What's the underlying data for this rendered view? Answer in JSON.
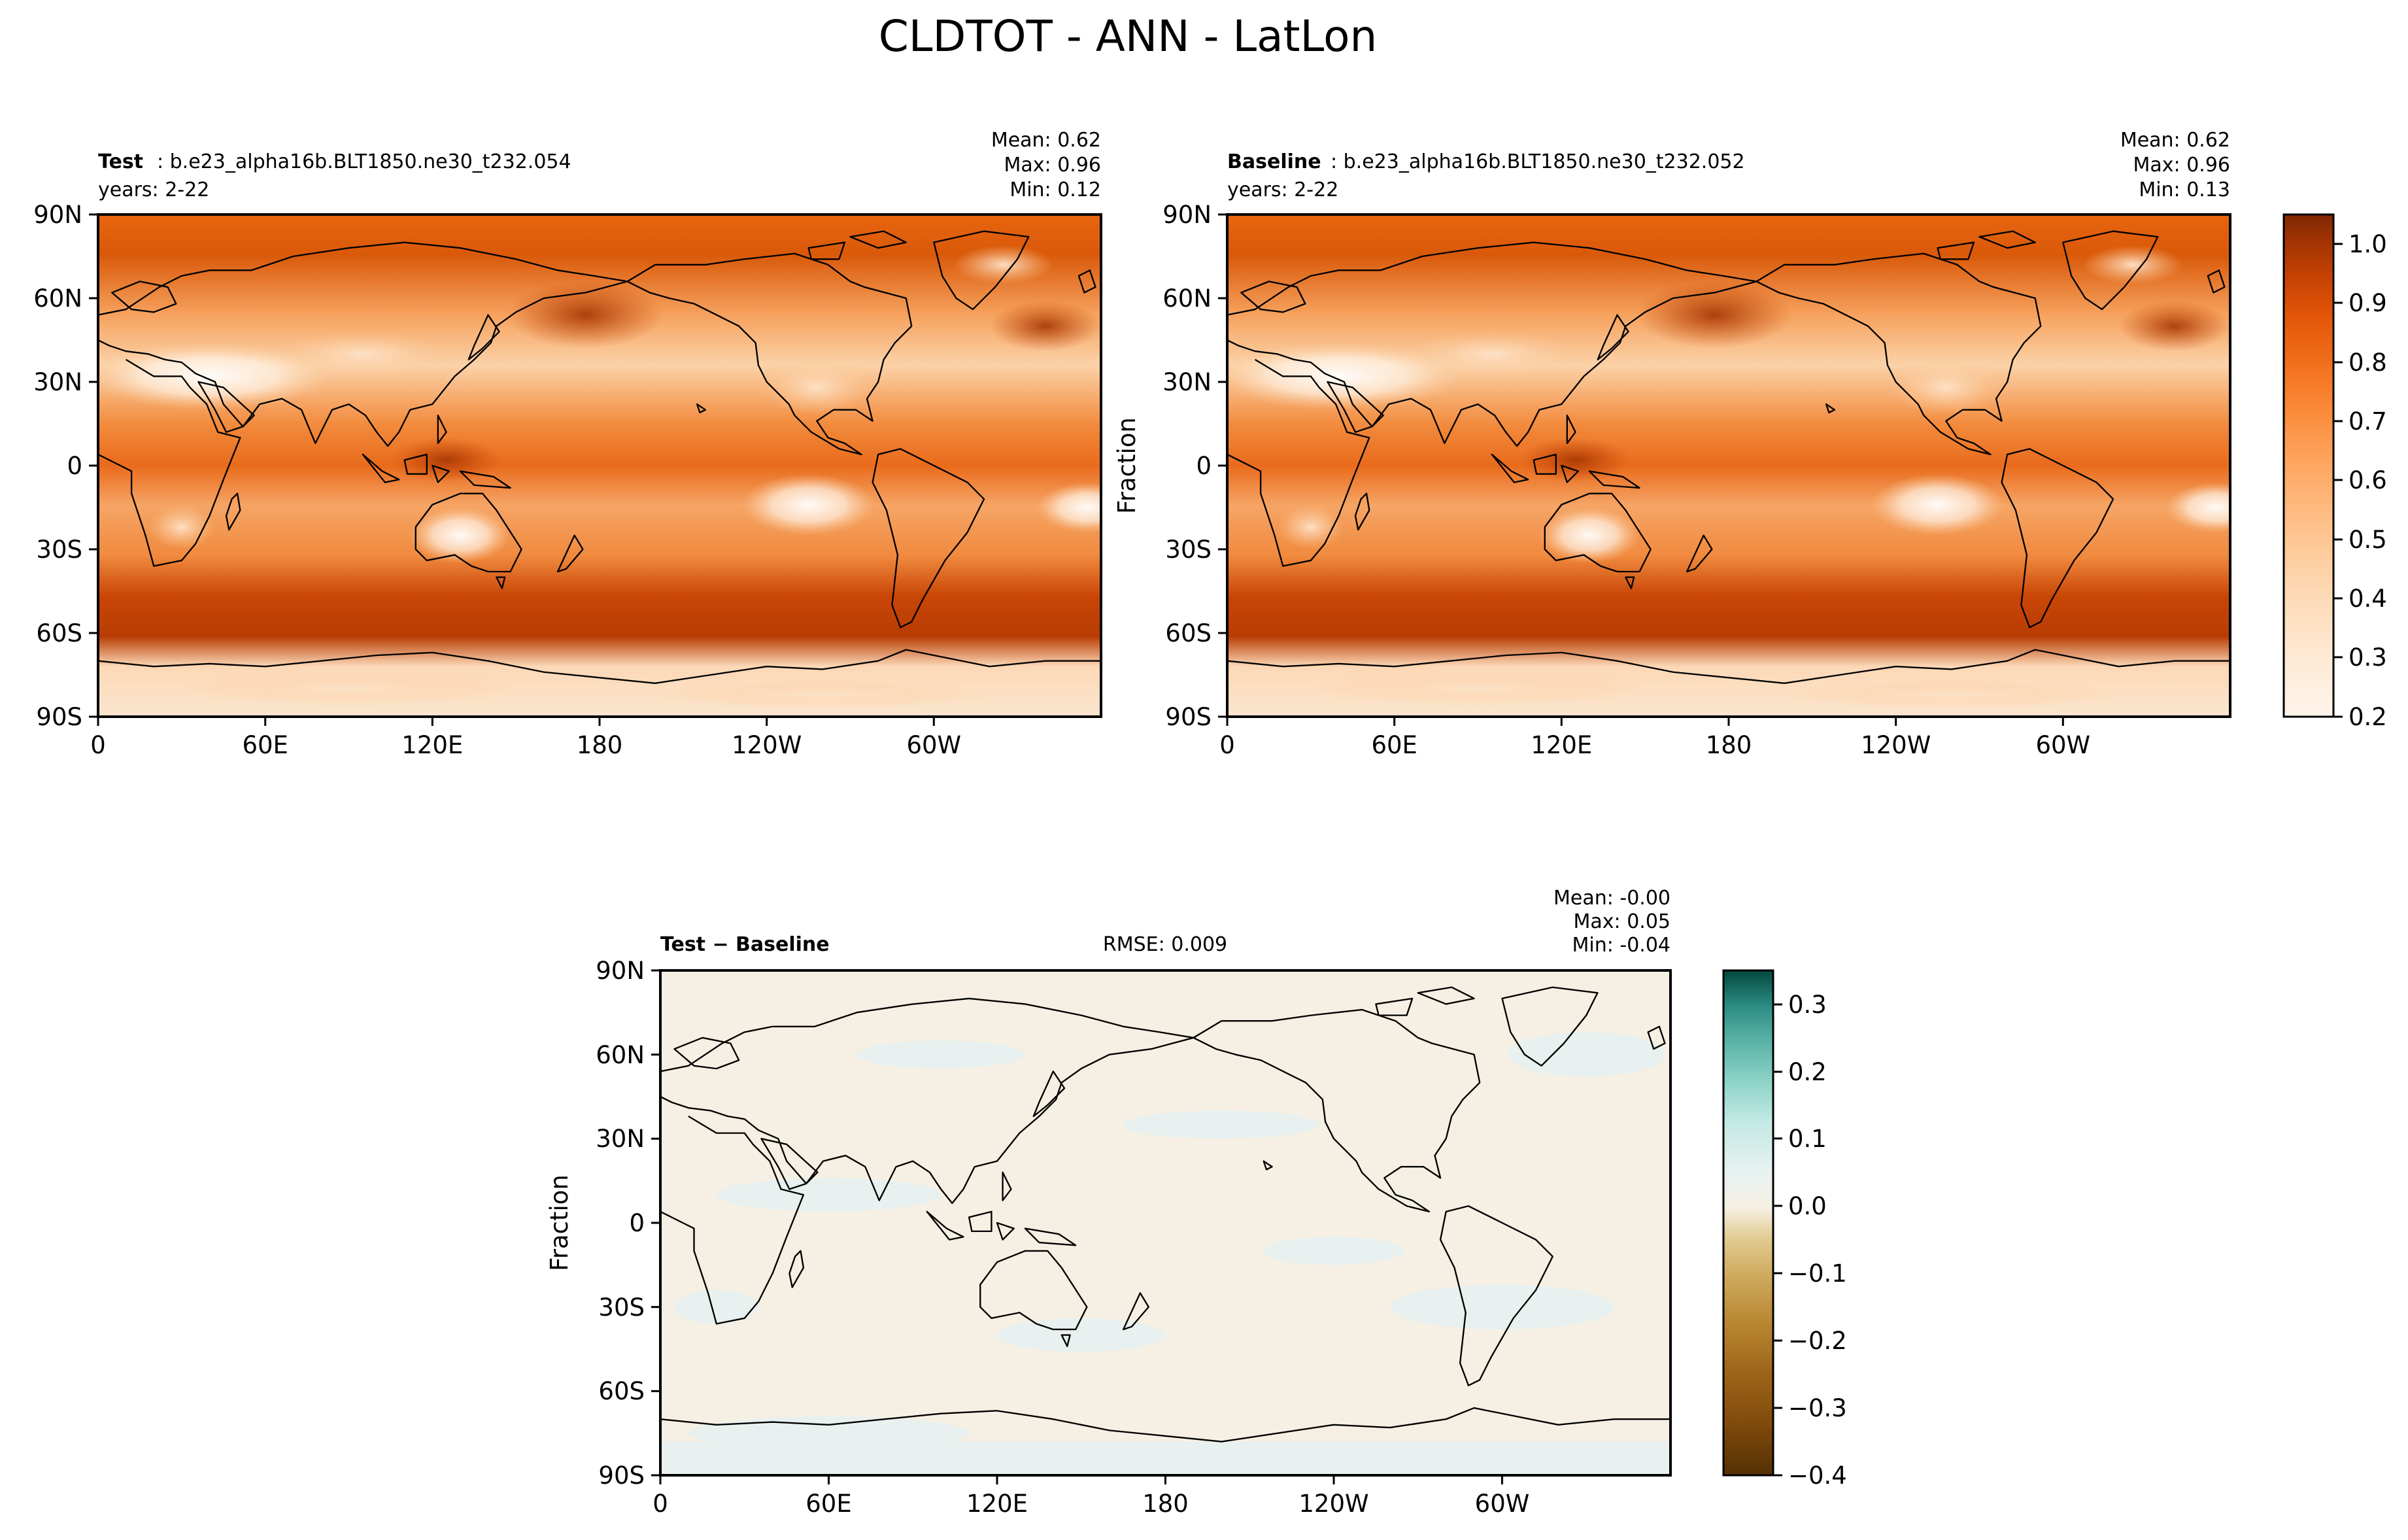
{
  "figure_title": "CLDTOT - ANN - LatLon",
  "chart_data": [
    {
      "type": "heatmap",
      "panel": "test",
      "label_bold": "Test",
      "label_rest": ": b.e23_alpha16b.BLT1850.ne30_t232.054",
      "years": "years: 2-22",
      "stats": [
        "Mean:  0.62",
        "Max:  0.96",
        "Min:  0.12"
      ],
      "xlabel": "",
      "ylabel": "",
      "x_ticks": [
        "0",
        "60E",
        "120E",
        "180",
        "120W",
        "60W"
      ],
      "y_ticks": [
        "90N",
        "60N",
        "30N",
        "0",
        "30S",
        "60S",
        "90S"
      ],
      "xlim": [
        0,
        360
      ],
      "ylim": [
        -90,
        90
      ],
      "value_range": [
        0.12,
        0.96
      ],
      "mean": 0.62
    },
    {
      "type": "heatmap",
      "panel": "baseline",
      "label_bold": "Baseline",
      "label_rest": ": b.e23_alpha16b.BLT1850.ne30_t232.052",
      "years": "years: 2-22",
      "stats": [
        "Mean:  0.62",
        "Max:  0.96",
        "Min:  0.13"
      ],
      "xlabel": "",
      "ylabel": "Fraction",
      "x_ticks": [
        "0",
        "60E",
        "120E",
        "180",
        "120W",
        "60W"
      ],
      "y_ticks": [
        "90N",
        "60N",
        "30N",
        "0",
        "30S",
        "60S",
        "90S"
      ],
      "xlim": [
        0,
        360
      ],
      "ylim": [
        -90,
        90
      ],
      "value_range": [
        0.13,
        0.96
      ],
      "mean": 0.62,
      "colorbar": {
        "ticks": [
          "1.0",
          "0.9",
          "0.8",
          "0.7",
          "0.6",
          "0.5",
          "0.4",
          "0.3",
          "0.2"
        ],
        "range": [
          0.2,
          1.05
        ],
        "colors": [
          "#fff5eb",
          "#fee8d3",
          "#fdd9b4",
          "#fdc28c",
          "#fda762",
          "#fb8d3d",
          "#f2701d",
          "#e25508",
          "#c44103",
          "#a03303",
          "#7f2704"
        ]
      }
    },
    {
      "type": "heatmap",
      "panel": "difference",
      "label_bold": "Test − Baseline",
      "label_rest": "",
      "rmse": "RMSE: 0.009",
      "stats": [
        "Mean: -0.00",
        "Max:  0.05",
        "Min: -0.04"
      ],
      "xlabel": "",
      "ylabel": "Fraction",
      "x_ticks": [
        "0",
        "60E",
        "120E",
        "180",
        "120W",
        "60W"
      ],
      "y_ticks": [
        "90N",
        "60N",
        "30N",
        "0",
        "30S",
        "60S",
        "90S"
      ],
      "xlim": [
        0,
        360
      ],
      "ylim": [
        -90,
        90
      ],
      "value_range": [
        -0.04,
        0.05
      ],
      "mean": -0.0,
      "colorbar": {
        "ticks": [
          "0.3",
          "0.2",
          "0.1",
          "0.0",
          "−0.1",
          "−0.2",
          "−0.3",
          "−0.4"
        ],
        "range": [
          -0.4,
          0.35
        ],
        "colors": [
          "#543005",
          "#7f4a0b",
          "#9c6419",
          "#b88631",
          "#d0ac60",
          "#e2cb93",
          "#f2e4c1",
          "#f6f0e3",
          "#e7f2f1",
          "#c3e9e4",
          "#8dd3c7",
          "#5ab2a7",
          "#2d8c83",
          "#0a6b61",
          "#01483d"
        ]
      }
    }
  ]
}
